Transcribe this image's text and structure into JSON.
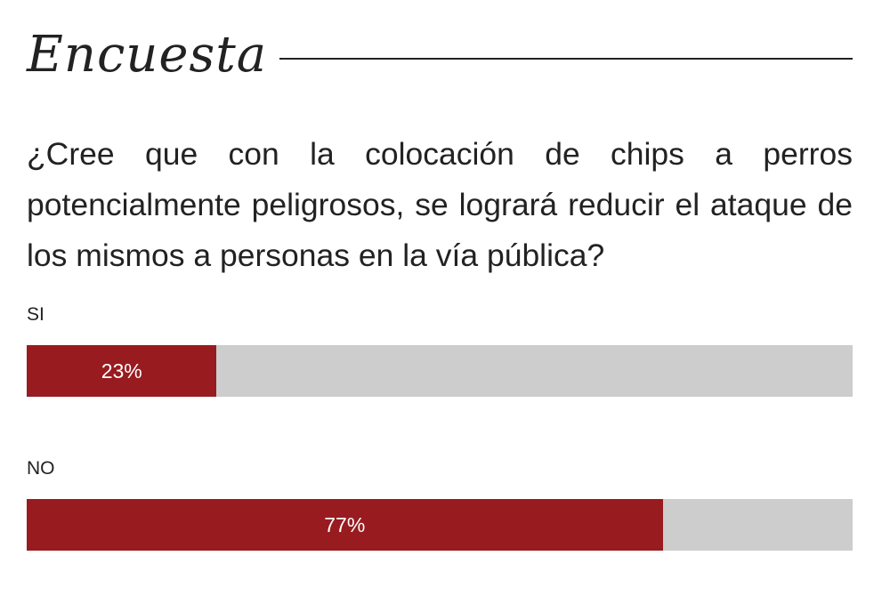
{
  "header": {
    "title": "Encuesta"
  },
  "question": "¿Cree que con la colocación de chips a perros potencialmente peligrosos, se logrará reducir el ataque de los mismos a personas en la vía pública?",
  "colors": {
    "fill": "#981b20",
    "track": "#cdcdcd",
    "text": "#222222",
    "value_text": "#ffffff"
  },
  "chart_data": {
    "type": "bar",
    "orientation": "horizontal",
    "title": "Encuesta",
    "categories": [
      "SI",
      "NO"
    ],
    "values": [
      23,
      77
    ],
    "value_labels": [
      "23%",
      "77%"
    ],
    "unit": "%",
    "xlim": [
      0,
      100
    ],
    "grid": false,
    "legend": "none"
  }
}
